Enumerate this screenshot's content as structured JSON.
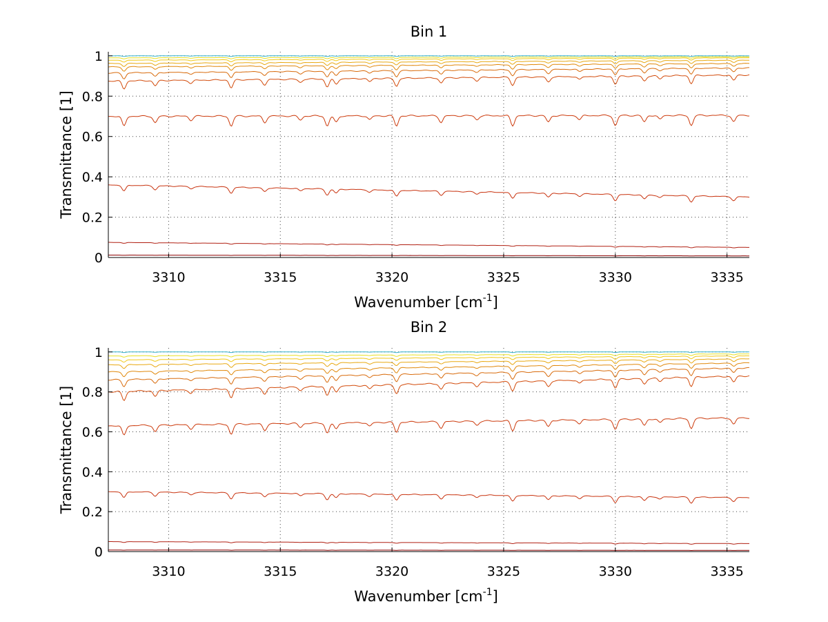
{
  "chart_data": [
    {
      "type": "line",
      "title": "Bin 1",
      "xlabel": "Wavenumber [cm",
      "xlabel_sup": "-1",
      "xlabel_suffix": "]",
      "ylabel": "Transmittance [1]",
      "xlim": [
        3307.3,
        3336.0
      ],
      "ylim": [
        0,
        1.02
      ],
      "x_ticks": [
        3310,
        3315,
        3320,
        3325,
        3330,
        3335
      ],
      "y_ticks": [
        0,
        0.2,
        0.4,
        0.6,
        0.8,
        1
      ],
      "y_tick_labels": [
        "0",
        "0.2",
        "0.4",
        "0.6",
        "0.8",
        "1"
      ],
      "grid": true,
      "lines": [
        {
          "color": "#8b0000",
          "start": 0.012,
          "end": 0.008,
          "depth": 0.001
        },
        {
          "color": "#b01e10",
          "start": 0.075,
          "end": 0.05,
          "depth": 0.004
        },
        {
          "color": "#c8320e",
          "start": 0.36,
          "end": 0.3,
          "depth": 0.03
        },
        {
          "color": "#cc3a0c",
          "start": 0.7,
          "end": 0.705,
          "depth": 0.05
        },
        {
          "color": "#d24a0a",
          "start": 0.875,
          "end": 0.905,
          "depth": 0.04
        },
        {
          "color": "#d86a0a",
          "start": 0.915,
          "end": 0.94,
          "depth": 0.03
        },
        {
          "color": "#e0880a",
          "start": 0.945,
          "end": 0.962,
          "depth": 0.022
        },
        {
          "color": "#e8a810",
          "start": 0.962,
          "end": 0.978,
          "depth": 0.015
        },
        {
          "color": "#f0c818",
          "start": 0.978,
          "end": 0.99,
          "depth": 0.01
        },
        {
          "color": "#e8e020",
          "start": 0.99,
          "end": 0.995,
          "depth": 0.006
        },
        {
          "color": "#30b0c8",
          "start": 1.0,
          "end": 1.0,
          "depth": 0.003
        }
      ]
    },
    {
      "type": "line",
      "title": "Bin 2",
      "xlabel": "Wavenumber [cm",
      "xlabel_sup": "-1",
      "xlabel_suffix": "]",
      "ylabel": "Transmittance [1]",
      "xlim": [
        3307.3,
        3336.0
      ],
      "ylim": [
        0,
        1.02
      ],
      "x_ticks": [
        3310,
        3315,
        3320,
        3325,
        3330,
        3335
      ],
      "y_ticks": [
        0,
        0.2,
        0.4,
        0.6,
        0.8,
        1
      ],
      "y_tick_labels": [
        "0",
        "0.2",
        "0.4",
        "0.6",
        "0.8",
        "1"
      ],
      "grid": true,
      "lines": [
        {
          "color": "#8b0000",
          "start": 0.008,
          "end": 0.006,
          "depth": 0.001
        },
        {
          "color": "#b01e10",
          "start": 0.05,
          "end": 0.04,
          "depth": 0.004
        },
        {
          "color": "#c8320e",
          "start": 0.3,
          "end": 0.27,
          "depth": 0.03
        },
        {
          "color": "#cc3a0c",
          "start": 0.63,
          "end": 0.67,
          "depth": 0.05
        },
        {
          "color": "#d24a0a",
          "start": 0.8,
          "end": 0.88,
          "depth": 0.045
        },
        {
          "color": "#d86a0a",
          "start": 0.86,
          "end": 0.92,
          "depth": 0.035
        },
        {
          "color": "#e0880a",
          "start": 0.9,
          "end": 0.945,
          "depth": 0.025
        },
        {
          "color": "#e8a810",
          "start": 0.935,
          "end": 0.965,
          "depth": 0.018
        },
        {
          "color": "#f0c818",
          "start": 0.96,
          "end": 0.98,
          "depth": 0.012
        },
        {
          "color": "#e8e020",
          "start": 0.98,
          "end": 0.99,
          "depth": 0.007
        },
        {
          "color": "#30b0c8",
          "start": 1.0,
          "end": 1.0,
          "depth": 0.003
        }
      ]
    }
  ]
}
